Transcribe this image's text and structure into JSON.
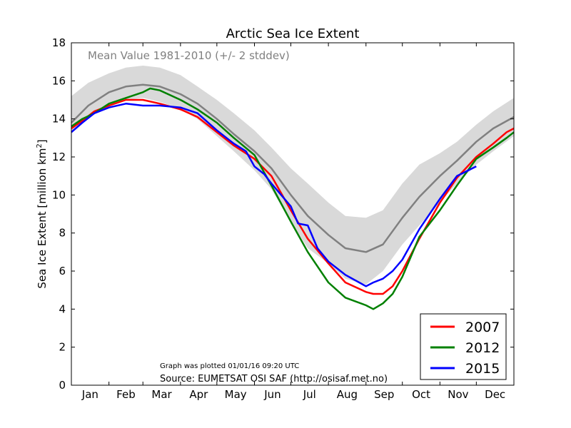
{
  "chart_data": {
    "type": "line",
    "title": "Arctic Sea Ice Extent",
    "ylabel": "Sea Ice Extent [million km",
    "ylabel_sup": "2",
    "ylabel_close": "]",
    "ylim": [
      0,
      18
    ],
    "yticks": [
      "0",
      "2",
      "4",
      "6",
      "8",
      "10",
      "12",
      "14",
      "16",
      "18"
    ],
    "xlim": [
      1,
      366
    ],
    "months": [
      "Jan",
      "Feb",
      "Mar",
      "Apr",
      "May",
      "Jun",
      "Jul",
      "Aug",
      "Sep",
      "Oct",
      "Nov",
      "Dec"
    ],
    "band_label": "Mean Value 1981-2010 (+/- 2 stddev)",
    "plotted_note": "Graph was plotted 01/01/16 09:20 UTC",
    "source_note": "Source: EUMETSAT OSI SAF (http://osisaf.met.no)",
    "legend_position": "lower-right",
    "band": {
      "color": "#d9d9d9",
      "x": [
        1,
        15,
        32,
        46,
        60,
        74,
        91,
        105,
        121,
        135,
        152,
        166,
        182,
        196,
        213,
        227,
        244,
        258,
        274,
        288,
        305,
        319,
        335,
        349,
        366
      ],
      "upper": [
        15.2,
        15.9,
        16.4,
        16.7,
        16.8,
        16.7,
        16.3,
        15.7,
        15.0,
        14.3,
        13.4,
        12.5,
        11.4,
        10.6,
        9.6,
        8.9,
        8.8,
        9.2,
        10.6,
        11.6,
        12.2,
        12.8,
        13.7,
        14.4,
        15.1
      ],
      "lower": [
        13.3,
        14.1,
        14.7,
        15.0,
        15.1,
        14.9,
        14.5,
        14.0,
        13.1,
        12.3,
        11.3,
        10.3,
        8.6,
        7.2,
        6.4,
        5.6,
        5.3,
        6.0,
        7.4,
        8.4,
        9.6,
        10.6,
        11.6,
        12.3,
        13.1
      ]
    },
    "series": [
      {
        "name": "mean",
        "color": "#808080",
        "x": [
          1,
          15,
          32,
          46,
          60,
          74,
          91,
          105,
          121,
          135,
          152,
          166,
          182,
          196,
          213,
          227,
          244,
          258,
          274,
          288,
          305,
          319,
          335,
          349,
          366
        ],
        "values": [
          13.8,
          14.7,
          15.4,
          15.7,
          15.8,
          15.7,
          15.3,
          14.8,
          14.0,
          13.2,
          12.3,
          11.4,
          10.0,
          8.9,
          7.9,
          7.2,
          7.0,
          7.4,
          8.8,
          9.9,
          11.0,
          11.8,
          12.8,
          13.5,
          14.1
        ]
      },
      {
        "name": "2007",
        "color": "#ff0000",
        "x": [
          1,
          10,
          20,
          32,
          46,
          60,
          74,
          91,
          105,
          121,
          135,
          152,
          166,
          182,
          196,
          213,
          227,
          244,
          250,
          258,
          266,
          274,
          288,
          305,
          319,
          335,
          349,
          360,
          366
        ],
        "values": [
          13.5,
          13.9,
          14.4,
          14.7,
          15.0,
          15.0,
          14.8,
          14.5,
          14.1,
          13.3,
          12.6,
          11.9,
          11.0,
          9.2,
          7.7,
          6.4,
          5.4,
          4.9,
          4.8,
          4.8,
          5.2,
          6.0,
          7.7,
          9.6,
          10.9,
          12.0,
          12.7,
          13.3,
          13.5
        ]
      },
      {
        "name": "2012",
        "color": "#008000",
        "x": [
          1,
          10,
          20,
          32,
          46,
          60,
          66,
          74,
          91,
          105,
          121,
          135,
          152,
          166,
          182,
          196,
          213,
          227,
          244,
          250,
          258,
          266,
          274,
          288,
          305,
          319,
          335,
          349,
          360,
          366
        ],
        "values": [
          13.6,
          14.0,
          14.3,
          14.8,
          15.1,
          15.4,
          15.6,
          15.5,
          15.0,
          14.5,
          13.8,
          13.0,
          12.1,
          10.5,
          8.6,
          7.0,
          5.4,
          4.6,
          4.2,
          4.0,
          4.3,
          4.8,
          5.7,
          7.8,
          9.2,
          10.5,
          11.9,
          12.5,
          13.0,
          13.3
        ]
      },
      {
        "name": "2015",
        "color": "#0000ff",
        "x": [
          1,
          10,
          20,
          32,
          46,
          60,
          74,
          91,
          105,
          121,
          135,
          145,
          152,
          160,
          166,
          182,
          188,
          196,
          204,
          213,
          227,
          244,
          250,
          258,
          266,
          274,
          288,
          305,
          319,
          335
        ],
        "values": [
          13.3,
          13.8,
          14.3,
          14.6,
          14.8,
          14.7,
          14.7,
          14.6,
          14.3,
          13.4,
          12.7,
          12.3,
          11.5,
          11.1,
          10.6,
          9.4,
          8.5,
          8.4,
          7.2,
          6.5,
          5.8,
          5.2,
          5.4,
          5.6,
          6.0,
          6.6,
          8.2,
          9.8,
          11.0,
          11.5
        ]
      }
    ],
    "legend": [
      {
        "label": "2007",
        "color": "#ff0000"
      },
      {
        "label": "2012",
        "color": "#008000"
      },
      {
        "label": "2015",
        "color": "#0000ff"
      }
    ]
  }
}
